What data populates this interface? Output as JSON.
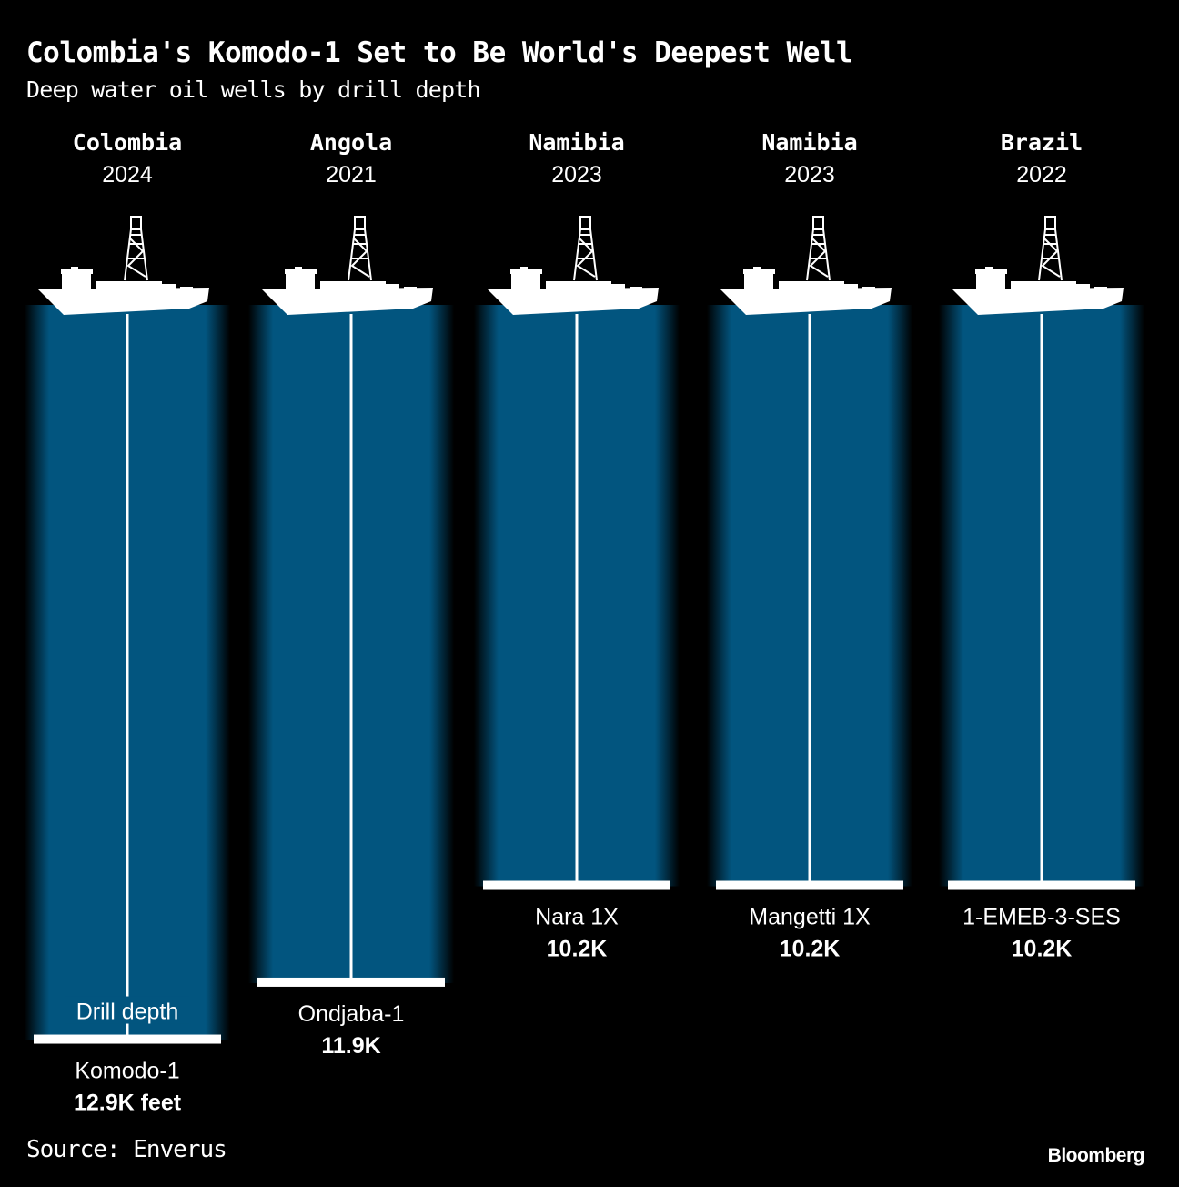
{
  "title": "Colombia's Komodo-1 Set to Be World's Deepest Well",
  "subtitle": "Deep water oil wells by drill depth",
  "source": "Source: Enverus",
  "brand": "Bloomberg",
  "colors": {
    "water": "#02557f",
    "background": "#000000",
    "line": "#ffffff"
  },
  "chart_data": {
    "type": "bar",
    "orientation": "vertical-down",
    "unit": "thousand feet",
    "annotation": "Drill depth",
    "categories": [
      "Komodo-1",
      "Ondjaba-1",
      "Nara 1X",
      "Mangetti 1X",
      "1-EMEB-3-SES"
    ],
    "countries": [
      "Colombia",
      "Angola",
      "Namibia",
      "Namibia",
      "Brazil"
    ],
    "years": [
      "2024",
      "2021",
      "2023",
      "2023",
      "2022"
    ],
    "values": [
      12.9,
      11.9,
      10.2,
      10.2,
      10.2
    ],
    "value_labels": [
      "12.9K feet",
      "11.9K",
      "10.2K",
      "10.2K",
      "10.2K"
    ]
  }
}
